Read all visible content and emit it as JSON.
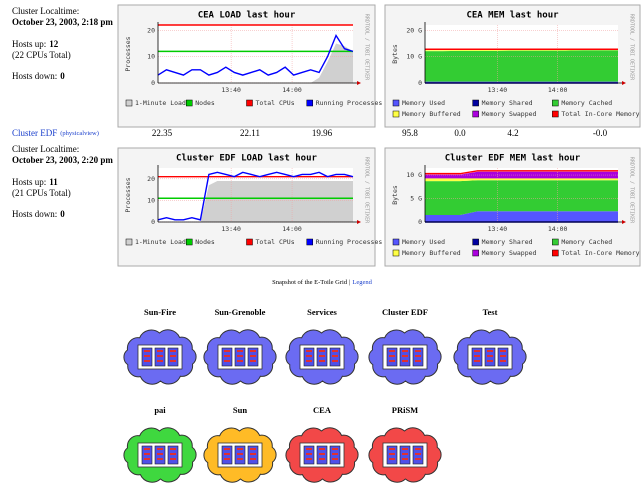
{
  "clusters": [
    {
      "localtime_label": "Cluster Localtime:",
      "localtime": "October 23, 2003, 2:18 pm",
      "hosts_up_label": "Hosts up:",
      "hosts_up": 12,
      "cpus_total": "(22 CPUs Total)",
      "hosts_down_label": "Hosts down:",
      "hosts_down": 0,
      "load_graph": {
        "title": "CEA LOAD last hour",
        "y_label": "Processes",
        "side_text": "RRDTOOL / TOBI OETIKER",
        "ylim": [
          0,
          22
        ],
        "yticks": [
          0,
          10,
          20
        ],
        "xlim": [
          0,
          64
        ],
        "xticks": [
          {
            "value": 24,
            "label": "13:40"
          },
          {
            "value": 44,
            "label": "14:00"
          }
        ],
        "series": [
          {
            "name": "1-Minute Load",
            "color": "#d0d0d0",
            "style": "area",
            "values": [
              0,
              0,
              0,
              0,
              0,
              0,
              0,
              0,
              0,
              0,
              0,
              0,
              0,
              0,
              0,
              0,
              0,
              0,
              0,
              2,
              8,
              15,
              14,
              12
            ]
          },
          {
            "name": "Nodes",
            "color": "#00cc00",
            "style": "line",
            "values": [
              12,
              12,
              12,
              12,
              12,
              12,
              12,
              12,
              12,
              12,
              12,
              12,
              12,
              12,
              12,
              12,
              12,
              12,
              12,
              12,
              12,
              12,
              12,
              12
            ]
          },
          {
            "name": "Total CPUs",
            "color": "#ff0000",
            "style": "line",
            "values": [
              22,
              22,
              22,
              22,
              22,
              22,
              22,
              22,
              22,
              22,
              22,
              22,
              22,
              22,
              22,
              22,
              22,
              22,
              22,
              22,
              22,
              22,
              22,
              22
            ]
          },
          {
            "name": "Running Processes",
            "color": "#0000ff",
            "style": "line",
            "values": [
              3,
              5,
              4,
              3,
              5,
              5,
              3,
              4,
              6,
              4,
              3,
              4,
              5,
              3,
              4,
              6,
              3,
              4,
              5,
              4,
              10,
              18,
              13,
              12
            ]
          }
        ]
      },
      "mem_graph": {
        "title": "CEA MEM last hour",
        "y_label": "Bytes",
        "side_text": "RRDTOOL / TOBI OETIKER",
        "ylim": [
          0,
          22
        ],
        "yticks": [
          0,
          {
            "value": 10,
            "label": "10 G"
          },
          {
            "value": 20,
            "label": "20 G"
          }
        ],
        "xlim": [
          0,
          64
        ],
        "xticks": [
          {
            "value": 24,
            "label": "13:40"
          },
          {
            "value": 44,
            "label": "14:00"
          }
        ],
        "series": [
          {
            "name": "Memory Used",
            "color": "#5555ff",
            "style": "stack",
            "values": [
              0.5,
              0.5,
              0.5,
              0.5,
              0.5,
              0.5,
              0.5,
              0.5,
              0.5,
              0.5,
              0.5,
              0.5
            ]
          },
          {
            "name": "Memory Shared",
            "color": "#0000a0",
            "style": "line",
            "values": [
              0,
              0,
              0,
              0,
              0,
              0,
              0,
              0,
              0,
              0,
              0,
              0
            ]
          },
          {
            "name": "Memory Cached",
            "color": "#33cc33",
            "style": "stack",
            "values": [
              11.6,
              11.6,
              11.7,
              11.7,
              11.7,
              11.8,
              11.8,
              11.8,
              11.8,
              11.9,
              11.9,
              11.9
            ]
          },
          {
            "name": "Memory Buffered",
            "color": "#ffff44",
            "style": "stack",
            "values": [
              0.3,
              0.3,
              0.3,
              0.3,
              0.3,
              0.3,
              0.3,
              0.3,
              0.3,
              0.3,
              0.3,
              0.3
            ]
          },
          {
            "name": "Memory Swapped",
            "color": "#aa00dd",
            "style": "stack",
            "values": [
              0,
              0,
              0,
              0,
              0,
              0,
              0,
              0,
              0,
              0,
              0,
              0
            ]
          },
          {
            "name": "Total In-Core Memory",
            "color": "#ff0000",
            "style": "line",
            "values": [
              12.8,
              12.8,
              12.8,
              12.8,
              12.8,
              12.8,
              12.8,
              12.8,
              12.8,
              12.8,
              12.8,
              12.8
            ]
          }
        ]
      }
    },
    {
      "name": "Cluster EDF",
      "view": "(physicalview)",
      "stats": [
        "22.35",
        "22.11",
        "19.96",
        "95.8",
        "0.0",
        "4.2",
        "-0.0"
      ],
      "localtime_label": "Cluster Localtime:",
      "localtime": "October 23, 2003, 2:20 pm",
      "hosts_up_label": "Hosts up:",
      "hosts_up": 11,
      "cpus_total": "(21 CPUs Total)",
      "hosts_down_label": "Hosts down:",
      "hosts_down": 0,
      "load_graph": {
        "title": "Cluster EDF  LOAD last hour",
        "y_label": "Processes",
        "side_text": "RRDTOOL / TOBI OETIKER",
        "ylim": [
          0,
          25
        ],
        "yticks": [
          0,
          10,
          20
        ],
        "xlim": [
          0,
          64
        ],
        "xticks": [
          {
            "value": 24,
            "label": "13:40"
          },
          {
            "value": 44,
            "label": "14:00"
          }
        ],
        "series": [
          {
            "name": "1-Minute Load",
            "color": "#d0d0d0",
            "style": "area",
            "values": [
              0,
              0,
              0,
              0,
              0,
              0,
              17,
              19,
              19,
              19,
              19,
              19,
              19,
              19,
              19,
              19,
              19,
              19,
              19,
              19,
              19,
              19,
              19,
              19
            ]
          },
          {
            "name": "Nodes",
            "color": "#00cc00",
            "style": "line",
            "values": [
              11,
              11,
              11,
              11,
              11,
              11,
              11,
              11,
              11,
              11,
              11,
              11,
              11,
              11,
              11,
              11,
              11,
              11,
              11,
              11,
              11,
              11,
              11,
              11
            ]
          },
          {
            "name": "Total CPUs",
            "color": "#ff0000",
            "style": "line",
            "values": [
              21,
              21,
              21,
              21,
              21,
              21,
              21,
              21,
              21,
              21,
              21,
              21,
              21,
              21,
              21,
              21,
              21,
              21,
              21,
              21,
              21,
              21,
              21,
              21
            ]
          },
          {
            "name": "Running Processes",
            "color": "#0000ff",
            "style": "line",
            "values": [
              1,
              2,
              1,
              1,
              2,
              1,
              22,
              23,
              22,
              21,
              23,
              22,
              21,
              22,
              23,
              22,
              21,
              22,
              22,
              23,
              21,
              22,
              22,
              21
            ]
          }
        ]
      },
      "mem_graph": {
        "title": "Cluster EDF  MEM last hour",
        "y_label": "Bytes",
        "side_text": "RRDTOOL / TOBI OETIKER",
        "ylim": [
          0,
          11.5
        ],
        "yticks": [
          0,
          {
            "value": 5,
            "label": "5 G"
          },
          {
            "value": 10,
            "label": "10 G"
          }
        ],
        "xlim": [
          0,
          64
        ],
        "xticks": [
          {
            "value": 24,
            "label": "13:40"
          },
          {
            "value": 44,
            "label": "14:00"
          }
        ],
        "series": [
          {
            "name": "Memory Used",
            "color": "#5555ff",
            "style": "stack",
            "values": [
              1.5,
              1.5,
              1.5,
              2.3,
              2.3,
              2.3,
              2.3,
              2.3,
              2.3,
              2.3,
              2.3,
              2.3
            ]
          },
          {
            "name": "Memory Shared",
            "color": "#0000a0",
            "style": "line",
            "values": [
              0,
              0,
              0,
              0,
              0,
              0,
              0,
              0,
              0,
              0,
              0,
              0
            ]
          },
          {
            "name": "Memory Cached",
            "color": "#33cc33",
            "style": "stack",
            "values": [
              7.2,
              7.2,
              7.2,
              6.6,
              6.6,
              6.6,
              6.6,
              6.6,
              6.6,
              6.6,
              6.6,
              6.6
            ]
          },
          {
            "name": "Memory Buffered",
            "color": "#ffff44",
            "style": "stack",
            "values": [
              0.6,
              0.6,
              0.6,
              0.4,
              0.4,
              0.4,
              0.4,
              0.4,
              0.4,
              0.4,
              0.4,
              0.4
            ]
          },
          {
            "name": "Memory Swapped",
            "color": "#aa00dd",
            "style": "stack",
            "values": [
              0.8,
              0.8,
              0.8,
              1.4,
              1.4,
              1.4,
              1.4,
              1.4,
              1.4,
              1.4,
              1.4,
              1.4
            ]
          },
          {
            "name": "Total In-Core Memory",
            "color": "#ff0000",
            "style": "line",
            "values": [
              10.3,
              10.3,
              10.3,
              10.9,
              10.9,
              10.9,
              10.9,
              10.9,
              10.9,
              10.9,
              10.9,
              10.9
            ]
          }
        ]
      }
    }
  ],
  "snapshot": {
    "caption": "Snapshot of the E-Toile Grid",
    "separator": "|",
    "legend_link": "Legend"
  },
  "grid_nodes": [
    {
      "name": "Sun-Fire",
      "color": "#6b6bf2"
    },
    {
      "name": "Sun-Grenoble",
      "color": "#6b6bf2"
    },
    {
      "name": "Services",
      "color": "#6b6bf2"
    },
    {
      "name": "Cluster EDF",
      "color": "#6b6bf2"
    },
    {
      "name": "Test",
      "color": "#6b6bf2"
    },
    {
      "name": "pai",
      "color": "#3fd83f"
    },
    {
      "name": "Sun",
      "color": "#ffbb26"
    },
    {
      "name": "CEA",
      "color": "#f24848"
    },
    {
      "name": "PRiSM",
      "color": "#f24848"
    }
  ]
}
